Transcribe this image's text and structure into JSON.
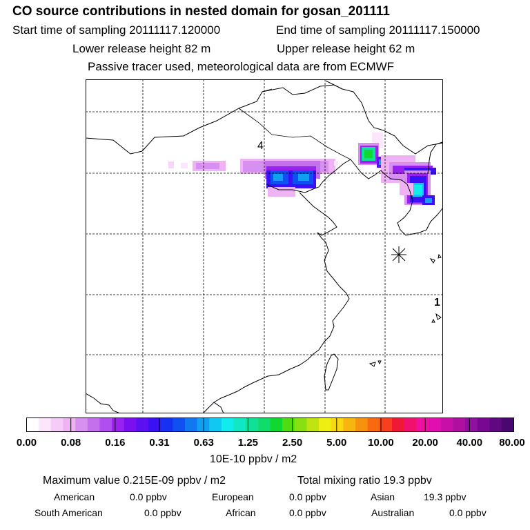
{
  "header": {
    "title": "CO  source contributions in nested domain for gosan_201111",
    "start_label": "Start time of sampling 20111117.120000",
    "end_label": "End time of sampling 20111117.150000",
    "lower_label": "Lower release height   82 m",
    "upper_label": "Upper release height   62 m",
    "note": "Passive tracer used, meteorological data are from ECMWF"
  },
  "map": {
    "label_4": "4",
    "label_1": "1",
    "receptor_symbol": "star-asterisk"
  },
  "colorbar": {
    "colors": [
      "#ffffff",
      "#fbe6fb",
      "#f5ccf8",
      "#eeb2f5",
      "#d890f0",
      "#c470ee",
      "#b14ef0",
      "#9a22ee",
      "#7a10f0",
      "#5a10f0",
      "#3a10f4",
      "#1830f0",
      "#1050f0",
      "#1078f0",
      "#10a0f0",
      "#10c8f0",
      "#10ecec",
      "#10e8c4",
      "#10e098",
      "#10dc6c",
      "#10d830",
      "#50dc10",
      "#88e010",
      "#c0e410",
      "#eeee10",
      "#f8d810",
      "#f8b410",
      "#f89010",
      "#f86a10",
      "#f84020",
      "#f01838",
      "#f01070",
      "#f010a0",
      "#e010b0",
      "#c810a8",
      "#b010a0",
      "#9010a0",
      "#780890",
      "#600880",
      "#480870"
    ],
    "tick_labels": [
      "0.00",
      "0.08",
      "0.16",
      "0.31",
      "0.63",
      "1.25",
      "2.50",
      "5.00",
      "10.00",
      "20.00",
      "40.00",
      "80.00"
    ],
    "units": "10E-10 ppbv / m2"
  },
  "stats": {
    "maximum": "Maximum value  0.215E-09 ppbv / m2",
    "total": "Total mixing ratio       19.3 ppbv",
    "american_label": "American",
    "american_value": "0.0 ppbv",
    "european_label": "European",
    "european_value": "0.0 ppbv",
    "asian_label": "Asian",
    "asian_value": "19.3 ppbv",
    "south_american_label": "South American",
    "south_american_value": "0.0 ppbv",
    "african_label": "African",
    "african_value": "0.0 ppbv",
    "australian_label": "Australian",
    "australian_value": "0.0 ppbv"
  }
}
